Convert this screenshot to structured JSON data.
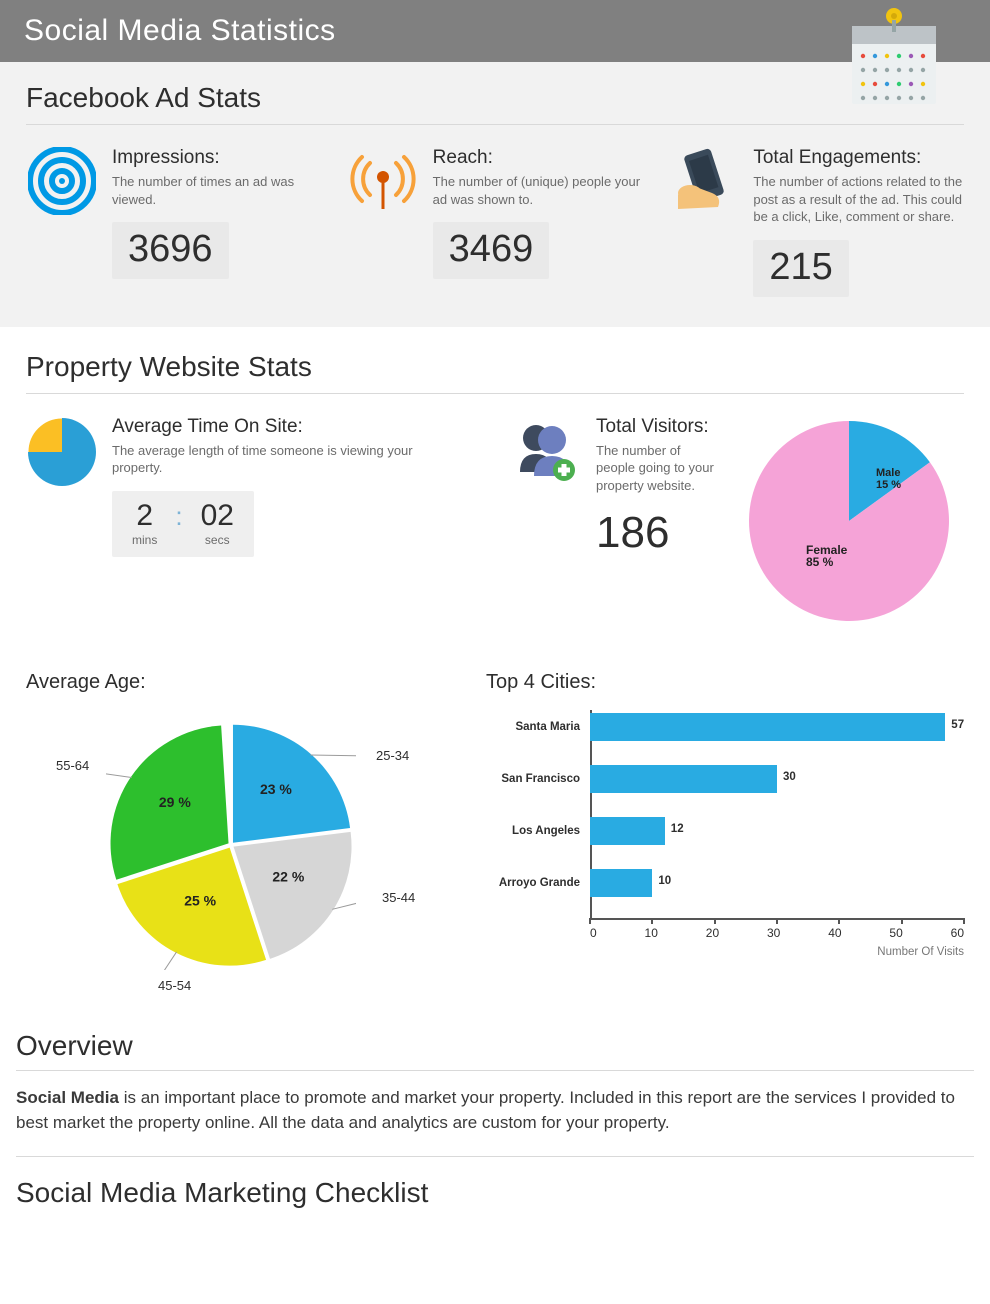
{
  "page_title": "Social Media Statistics",
  "calendar_icon": {
    "body_color": "#ecf0f1",
    "header_color": "#bdc3c7",
    "ring_color": "#f1c40f",
    "dot_colors": [
      "#e74c3c",
      "#f1c40f",
      "#3498db",
      "#2ecc71",
      "#9b59b6"
    ]
  },
  "facebook_section": {
    "title": "Facebook Ad Stats",
    "background_color": "#f2f2f2",
    "stats": {
      "impressions": {
        "title": "Impressions:",
        "desc": "The number of times an ad was viewed.",
        "value": "3696",
        "icon_color": "#0099e5"
      },
      "reach": {
        "title": "Reach:",
        "desc": "The number of (unique) people your ad was shown to.",
        "value": "3469",
        "icon_color": "#e87e04"
      },
      "engagements": {
        "title": "Total Engagements:",
        "desc": "The number of actions related to the post as a result of the ad. This could be a click, Like, comment or share.",
        "value": "215",
        "phone_color": "#3a4a5a",
        "hand_color": "#f4c27a"
      }
    }
  },
  "property_section": {
    "title": "Property Website Stats",
    "avg_time": {
      "title": "Average Time On Site:",
      "desc": "The average length of time someone is viewing your property.",
      "minutes": "2",
      "mins_label": "mins",
      "seconds": "02",
      "secs_label": "secs",
      "pie": {
        "yellow": "#fbbf24",
        "blue": "#2a9fd6",
        "yellow_pct": 25
      }
    },
    "total_visitors": {
      "title": "Total Visitors:",
      "desc": "The number of people going to your property website.",
      "value": "186",
      "icon": {
        "front": "#6d7fbf",
        "back": "#3e4a5e",
        "plus": "#4caf50"
      }
    },
    "gender_pie": {
      "type": "pie",
      "radius": 100,
      "slices": [
        {
          "label": "Male",
          "pct_text": "15 %",
          "value": 15,
          "color": "#29abe2"
        },
        {
          "label": "Female",
          "pct_text": "85 %",
          "value": 85,
          "color": "#f5a3d7"
        }
      ],
      "label_font_size": 11
    },
    "avg_age": {
      "title": "Average Age:",
      "type": "pie",
      "radius": 120,
      "slices": [
        {
          "label": "25-34",
          "pct_text": "23 %",
          "value": 23,
          "color": "#29abe2"
        },
        {
          "label": "35-44",
          "pct_text": "22 %",
          "value": 22,
          "color": "#d6d6d6"
        },
        {
          "label": "45-54",
          "pct_text": "25 %",
          "value": 25,
          "color": "#e8e117"
        },
        {
          "label": "55-64",
          "pct_text": "29 %",
          "value": 29,
          "color": "#2dbf2d"
        }
      ],
      "label_font_size": 12
    },
    "top_cities": {
      "title": "Top 4 Cities:",
      "type": "bar",
      "categories": [
        "Santa Maria",
        "San Francisco",
        "Los Angeles",
        "Arroyo Grande"
      ],
      "values": [
        57,
        30,
        12,
        10
      ],
      "bar_color": "#29abe2",
      "xlim": [
        0,
        60
      ],
      "xtick_step": 10,
      "xticks": [
        "0",
        "10",
        "20",
        "30",
        "40",
        "50",
        "60"
      ],
      "axis_color": "#555555",
      "xlabel": "Number Of Visits",
      "label_font_size": 12
    }
  },
  "overview": {
    "title": "Overview",
    "bold_prefix": "Social Media",
    "rest": " is an important place to promote and market your property. Included in this report are the services I provided to best market the property online. All the data and analytics are custom for your property."
  },
  "checklist": {
    "title": "Social Media Marketing Checklist"
  }
}
